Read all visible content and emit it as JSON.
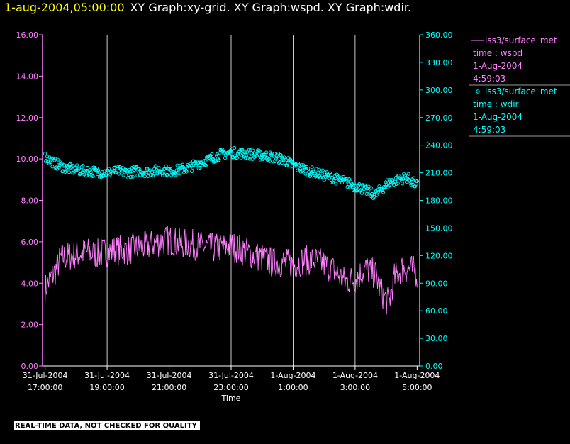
{
  "header": {
    "timestamp": "1-aug-2004,05:00:00",
    "title": "XY Graph:xy-grid.  XY Graph:wspd.  XY Graph:wdir."
  },
  "colors": {
    "left_axis": "#ff80ff",
    "right_axis": "#00ffff",
    "timestamp": "#ffff00",
    "grid": "#ffffff",
    "background": "#000000"
  },
  "footer": {
    "text": "REAL-TIME DATA, NOT CHECKED FOR QUALITY"
  },
  "legend": [
    {
      "line1": "iss3/surface_met",
      "line2": "time : wspd",
      "line3": "1-Aug-2004",
      "line4": "4:59:03",
      "color": "#ff80ff",
      "marker": "line"
    },
    {
      "line1": "iss3/surface_met",
      "line2": "time : wdir",
      "line3": "1-Aug-2004",
      "line4": "4:59:03",
      "color": "#00ffff",
      "marker": "circle"
    }
  ],
  "chart_data": {
    "type": "line",
    "xlabel": "Time",
    "grid": "vertical",
    "xlim": [
      "2004-07-31T16:55:00",
      "2004-08-01T05:05:00"
    ],
    "x_ticks": [
      {
        "line1": "31-Jul-2004",
        "line2": "17:00:00",
        "time": "2004-07-31T17:00:00"
      },
      {
        "line1": "31-Jul-2004",
        "line2": "19:00:00",
        "time": "2004-07-31T19:00:00"
      },
      {
        "line1": "31-Jul-2004",
        "line2": "21:00:00",
        "time": "2004-07-31T21:00:00"
      },
      {
        "line1": "31-Jul-2004",
        "line2": "23:00:00",
        "time": "2004-07-31T23:00:00"
      },
      {
        "line1": "1-Aug-2004",
        "line2": "1:00:00",
        "time": "2004-08-01T01:00:00"
      },
      {
        "line1": "1-Aug-2004",
        "line2": "3:00:00",
        "time": "2004-08-01T03:00:00"
      },
      {
        "line1": "1-Aug-2004",
        "line2": "5:00:00",
        "time": "2004-08-01T05:00:00"
      }
    ],
    "y_left": {
      "ylim": [
        0,
        16
      ],
      "ticks": [
        "0.00",
        "2.00",
        "4.00",
        "6.00",
        "8.00",
        "10.00",
        "12.00",
        "14.00",
        "16.00"
      ]
    },
    "y_right": {
      "ylim": [
        0,
        360
      ],
      "ticks": [
        "0.00",
        "30.00",
        "60.00",
        "90.00",
        "120.00",
        "150.00",
        "180.00",
        "210.00",
        "240.00",
        "270.00",
        "300.00",
        "330.00",
        "360.00"
      ]
    },
    "series": [
      {
        "name": "iss3/surface_met",
        "axis": "left",
        "style": "line",
        "points": [
          [
            "2004-07-31T17:00:00",
            3.7
          ],
          [
            "2004-07-31T17:10:00",
            4.2
          ],
          [
            "2004-07-31T17:20:00",
            4.6
          ],
          [
            "2004-07-31T17:30:00",
            5.2
          ],
          [
            "2004-07-31T17:45:00",
            5.3
          ],
          [
            "2004-07-31T18:00:00",
            5.4
          ],
          [
            "2004-07-31T18:20:00",
            5.5
          ],
          [
            "2004-07-31T18:40:00",
            5.4
          ],
          [
            "2004-07-31T19:00:00",
            5.5
          ],
          [
            "2004-07-31T19:20:00",
            5.6
          ],
          [
            "2004-07-31T19:40:00",
            5.6
          ],
          [
            "2004-07-31T20:00:00",
            5.7
          ],
          [
            "2004-07-31T20:20:00",
            5.8
          ],
          [
            "2004-07-31T20:40:00",
            6.0
          ],
          [
            "2004-07-31T21:00:00",
            6.1
          ],
          [
            "2004-07-31T21:20:00",
            5.9
          ],
          [
            "2004-07-31T21:40:00",
            5.9
          ],
          [
            "2004-07-31T22:00:00",
            5.8
          ],
          [
            "2004-07-31T22:20:00",
            5.7
          ],
          [
            "2004-07-31T22:40:00",
            5.7
          ],
          [
            "2004-07-31T23:00:00",
            5.8
          ],
          [
            "2004-07-31T23:20:00",
            5.6
          ],
          [
            "2004-07-31T23:40:00",
            5.4
          ],
          [
            "2004-08-01T00:00:00",
            5.2
          ],
          [
            "2004-08-01T00:20:00",
            5.0
          ],
          [
            "2004-08-01T00:40:00",
            5.0
          ],
          [
            "2004-08-01T01:00:00",
            4.9
          ],
          [
            "2004-08-01T01:20:00",
            5.1
          ],
          [
            "2004-08-01T01:40:00",
            5.1
          ],
          [
            "2004-08-01T02:00:00",
            4.9
          ],
          [
            "2004-08-01T02:20:00",
            4.6
          ],
          [
            "2004-08-01T02:40:00",
            4.1
          ],
          [
            "2004-08-01T03:00:00",
            4.2
          ],
          [
            "2004-08-01T03:20:00",
            4.7
          ],
          [
            "2004-08-01T03:40:00",
            4.4
          ],
          [
            "2004-08-01T03:50:00",
            3.6
          ],
          [
            "2004-08-01T04:05:00",
            3.0
          ],
          [
            "2004-08-01T04:15:00",
            4.2
          ],
          [
            "2004-08-01T04:30:00",
            4.7
          ],
          [
            "2004-08-01T04:45:00",
            4.7
          ],
          [
            "2004-08-01T05:00:00",
            4.5
          ]
        ]
      },
      {
        "name": "iss3/surface_met",
        "axis": "right",
        "style": "scatter",
        "points": [
          [
            "2004-07-31T17:00:00",
            227
          ],
          [
            "2004-07-31T17:20:00",
            220
          ],
          [
            "2004-07-31T17:40:00",
            215
          ],
          [
            "2004-07-31T18:00:00",
            213
          ],
          [
            "2004-07-31T18:20:00",
            212
          ],
          [
            "2004-07-31T18:40:00",
            211
          ],
          [
            "2004-07-31T19:00:00",
            210
          ],
          [
            "2004-07-31T19:20:00",
            212
          ],
          [
            "2004-07-31T19:40:00",
            210
          ],
          [
            "2004-07-31T20:00:00",
            212
          ],
          [
            "2004-07-31T20:20:00",
            211
          ],
          [
            "2004-07-31T20:40:00",
            213
          ],
          [
            "2004-07-31T21:00:00",
            212
          ],
          [
            "2004-07-31T21:20:00",
            213
          ],
          [
            "2004-07-31T21:40:00",
            216
          ],
          [
            "2004-07-31T22:00:00",
            221
          ],
          [
            "2004-07-31T22:20:00",
            225
          ],
          [
            "2004-07-31T22:40:00",
            230
          ],
          [
            "2004-07-31T23:00:00",
            232
          ],
          [
            "2004-07-31T23:20:00",
            231
          ],
          [
            "2004-07-31T23:40:00",
            230
          ],
          [
            "2004-08-01T00:00:00",
            229
          ],
          [
            "2004-08-01T00:20:00",
            227
          ],
          [
            "2004-08-01T00:40:00",
            225
          ],
          [
            "2004-08-01T01:00:00",
            218
          ],
          [
            "2004-08-01T01:20:00",
            214
          ],
          [
            "2004-08-01T01:40:00",
            210
          ],
          [
            "2004-08-01T02:00:00",
            207
          ],
          [
            "2004-08-01T02:20:00",
            204
          ],
          [
            "2004-08-01T02:40:00",
            200
          ],
          [
            "2004-08-01T03:00:00",
            196
          ],
          [
            "2004-08-01T03:20:00",
            191
          ],
          [
            "2004-08-01T03:40:00",
            186
          ],
          [
            "2004-08-01T03:50:00",
            192
          ],
          [
            "2004-08-01T04:05:00",
            199
          ],
          [
            "2004-08-01T04:20:00",
            202
          ],
          [
            "2004-08-01T04:40:00",
            205
          ],
          [
            "2004-08-01T05:00:00",
            196
          ]
        ]
      }
    ]
  }
}
